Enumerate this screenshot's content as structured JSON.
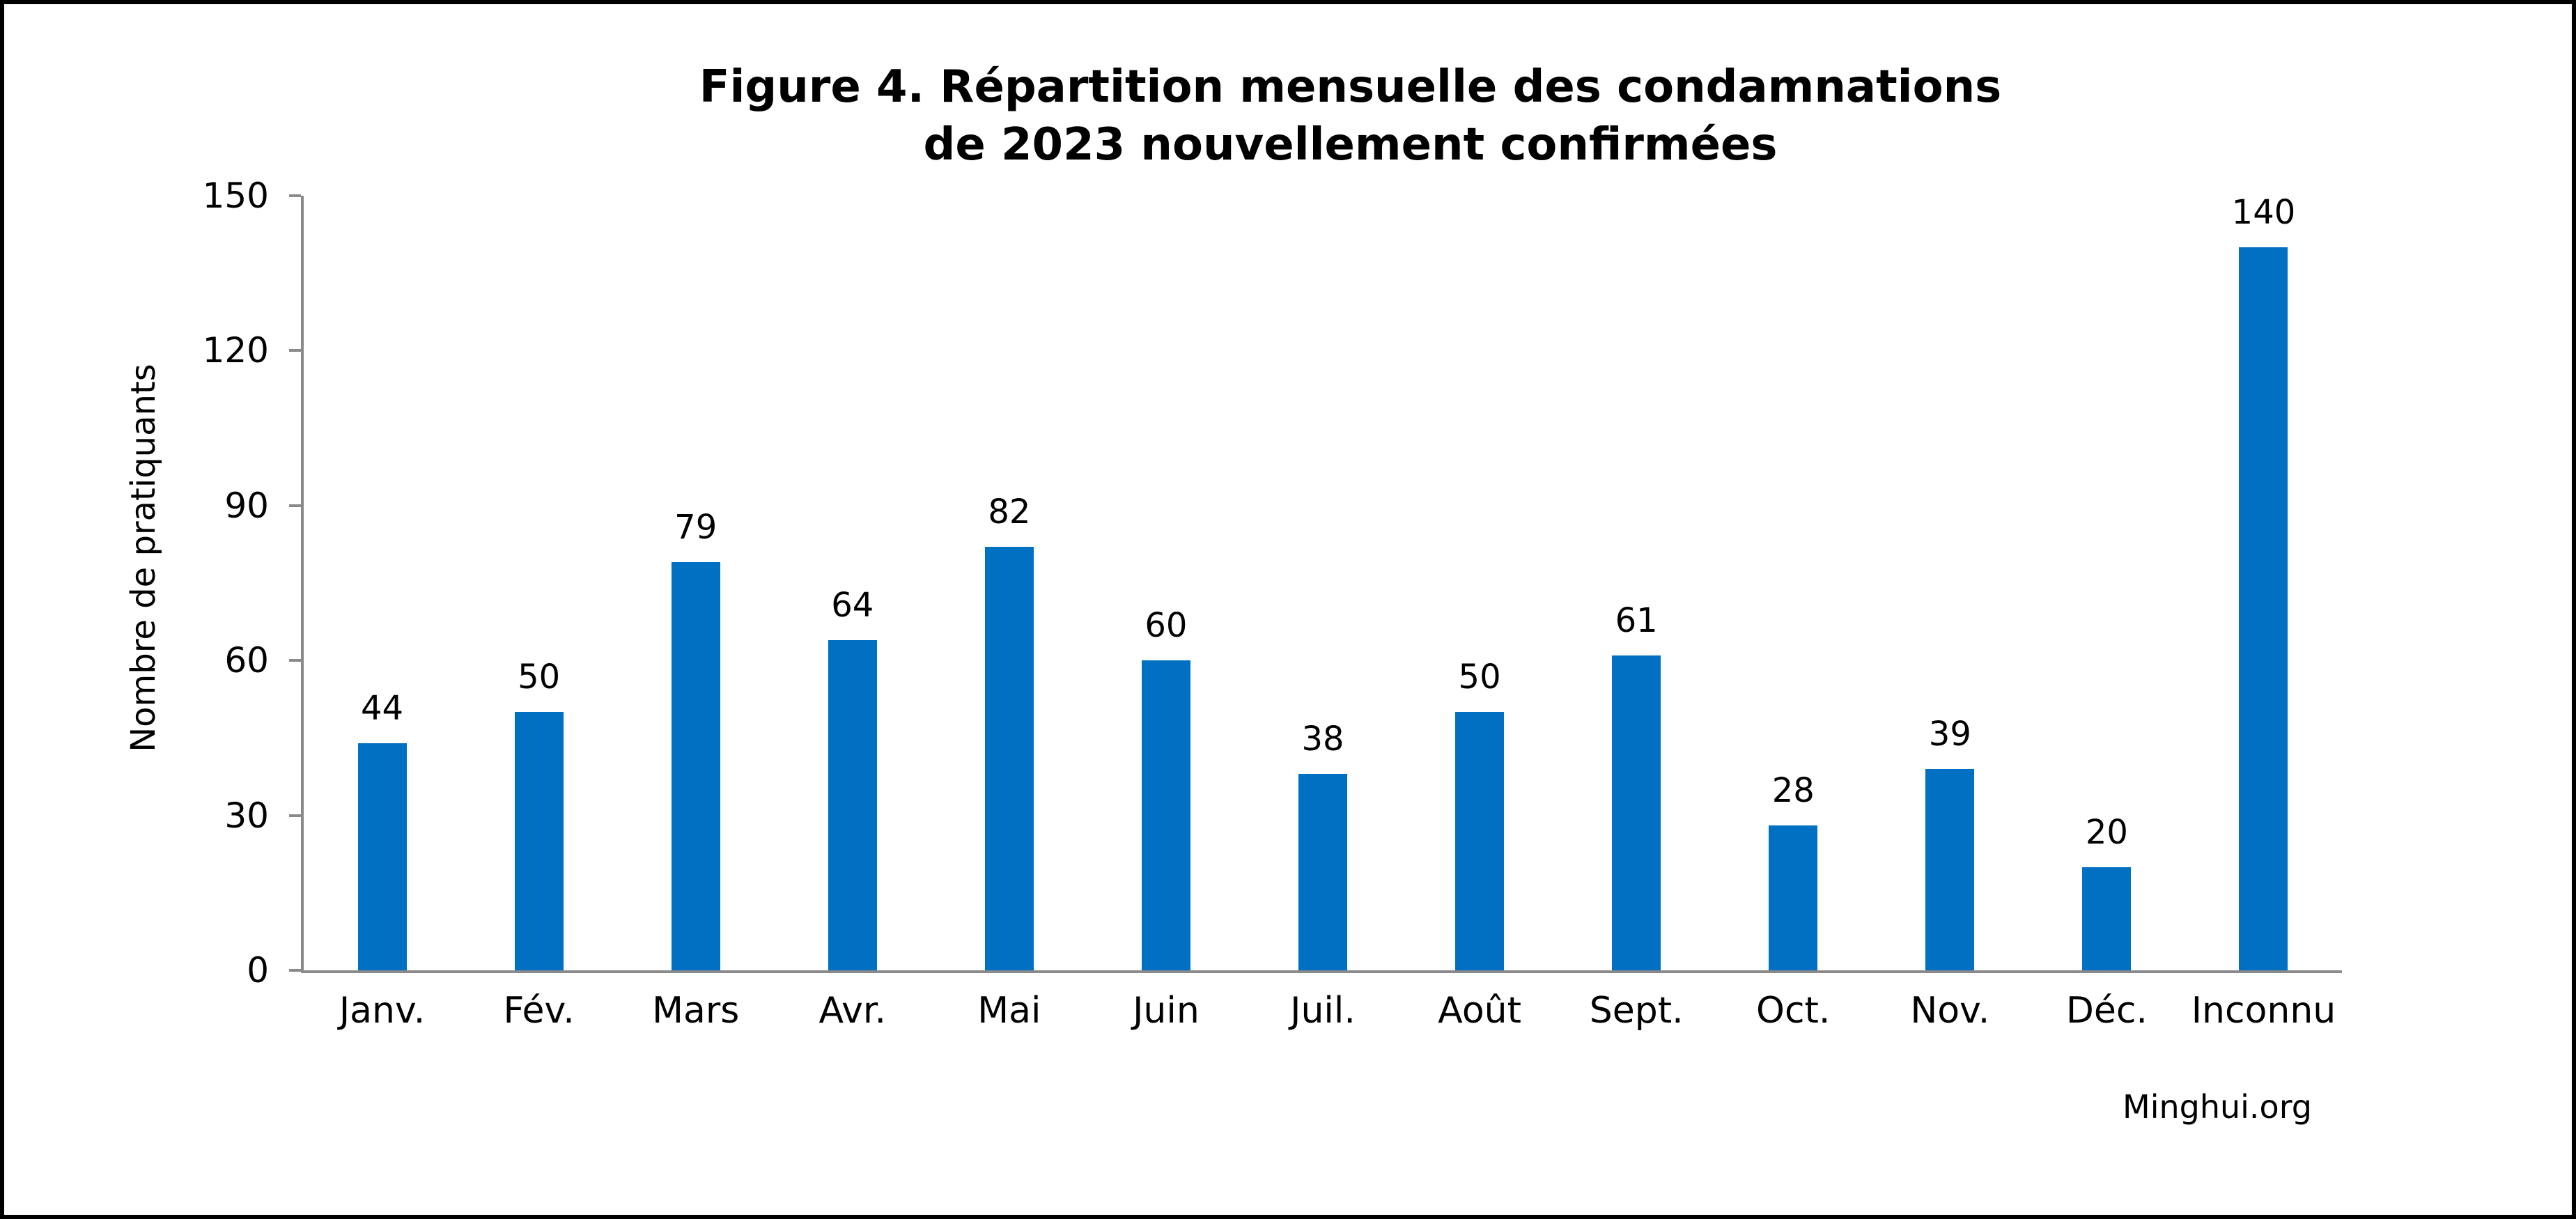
{
  "figure": {
    "title_line1": "Figure 4. Répartition mensuelle des condamnations",
    "title_line2": "de 2023 nouvellement confirmées",
    "source": "Minghui.org"
  },
  "chart_data": {
    "type": "bar",
    "title": "Figure 4. Répartition mensuelle des condamnations de 2023 nouvellement confirmées",
    "categories": [
      "Janv.",
      "Fév.",
      "Mars",
      "Avr.",
      "Mai",
      "Juin",
      "Juil.",
      "Août",
      "Sept.",
      "Oct.",
      "Nov.",
      "Déc.",
      "Inconnu"
    ],
    "values": [
      44,
      50,
      79,
      64,
      82,
      60,
      38,
      50,
      61,
      28,
      39,
      20,
      140
    ],
    "xlabel": "",
    "ylabel": "Nombre de pratiquants",
    "ylim": [
      0,
      150
    ],
    "yticks": [
      0,
      30,
      60,
      90,
      120,
      150
    ],
    "grid": false,
    "legend": false,
    "data_labels": true,
    "bar_color": "#0070c2",
    "axis_color": "#8a8a8a",
    "text_color": "#000000"
  }
}
